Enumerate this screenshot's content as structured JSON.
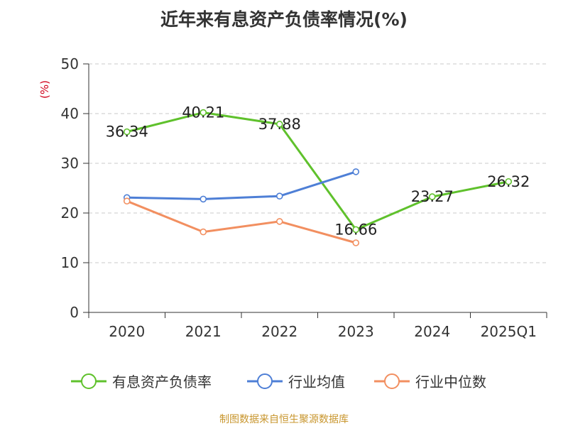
{
  "chart_data": {
    "type": "line",
    "title": "近年来有息资产负债率情况(%)",
    "ylabel": "(%)",
    "ylim": [
      0,
      50
    ],
    "yticks": [
      0,
      10,
      20,
      30,
      40,
      50
    ],
    "grid": true,
    "legend_position": "bottom",
    "categories": [
      "2020",
      "2021",
      "2022",
      "2023",
      "2024",
      "2025Q1"
    ],
    "series": [
      {
        "name": "有息资产负债率",
        "color": "#5fc12c",
        "values": [
          36.34,
          40.21,
          37.88,
          16.66,
          23.27,
          26.32
        ],
        "labels": [
          "36.34",
          "40.21",
          "37.88",
          "16.66",
          "23.27",
          "26.32"
        ]
      },
      {
        "name": "行业均值",
        "color": "#4e7fd6",
        "values": [
          23.1,
          22.8,
          23.4,
          28.3,
          null,
          null
        ]
      },
      {
        "name": "行业中位数",
        "color": "#f28f60",
        "values": [
          22.4,
          16.2,
          18.3,
          14.0,
          null,
          null
        ]
      }
    ]
  },
  "footer": {
    "source": "制图数据来自恒生聚源数据库",
    "color": "#c8962e"
  },
  "ylabel_color": "#d0021b"
}
